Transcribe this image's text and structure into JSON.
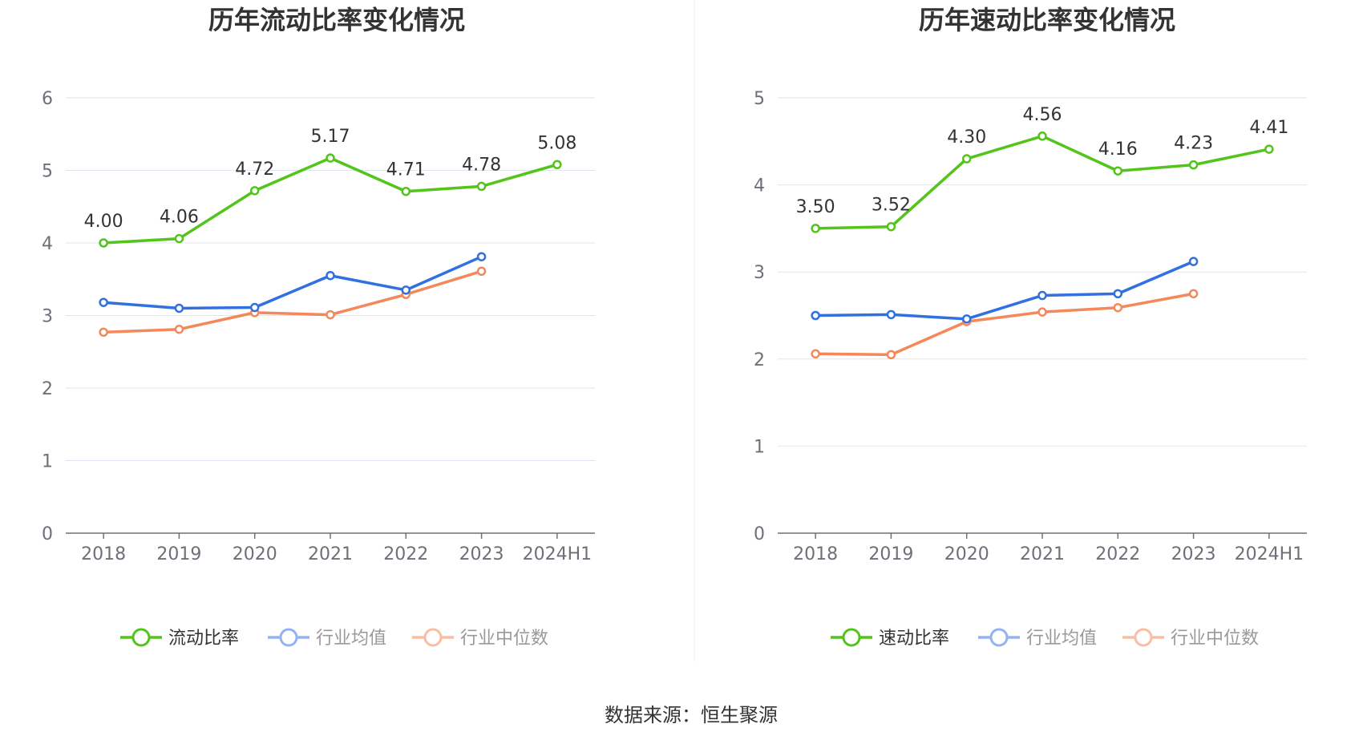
{
  "chart_data": [
    {
      "type": "line",
      "title": "历年流动比率变化情况",
      "categories": [
        "2018",
        "2019",
        "2020",
        "2021",
        "2022",
        "2023",
        "2024H1"
      ],
      "ylim": [
        0,
        6
      ],
      "yticks": [
        "0",
        "1",
        "2",
        "3",
        "4",
        "5",
        "6"
      ],
      "grid": true,
      "legend_position": "bottom-center",
      "series": [
        {
          "name": "流动比率",
          "color": "#52c41a",
          "values": [
            4.0,
            4.06,
            4.72,
            5.17,
            4.71,
            4.78,
            5.08
          ],
          "labels": [
            "4.00",
            "4.06",
            "4.72",
            "5.17",
            "4.71",
            "4.78",
            "5.08"
          ]
        },
        {
          "name": "行业均值",
          "color": "#3070e0",
          "values": [
            3.18,
            3.1,
            3.11,
            3.55,
            3.35,
            3.81,
            null
          ]
        },
        {
          "name": "行业中位数",
          "color": "#f4885a",
          "values": [
            2.77,
            2.81,
            3.04,
            3.01,
            3.29,
            3.61,
            null
          ]
        }
      ]
    },
    {
      "type": "line",
      "title": "历年速动比率变化情况",
      "categories": [
        "2018",
        "2019",
        "2020",
        "2021",
        "2022",
        "2023",
        "2024H1"
      ],
      "ylim": [
        0,
        5
      ],
      "yticks": [
        "0",
        "1",
        "2",
        "3",
        "4",
        "5"
      ],
      "grid": true,
      "legend_position": "bottom-center",
      "series": [
        {
          "name": "速动比率",
          "color": "#52c41a",
          "values": [
            3.5,
            3.52,
            4.3,
            4.56,
            4.16,
            4.23,
            4.41
          ],
          "labels": [
            "3.50",
            "3.52",
            "4.30",
            "4.56",
            "4.16",
            "4.23",
            "4.41"
          ]
        },
        {
          "name": "行业均值",
          "color": "#3070e0",
          "values": [
            2.5,
            2.51,
            2.46,
            2.73,
            2.75,
            3.12,
            null
          ]
        },
        {
          "name": "行业中位数",
          "color": "#f4885a",
          "values": [
            2.06,
            2.05,
            2.43,
            2.54,
            2.59,
            2.75,
            null
          ]
        }
      ]
    }
  ],
  "footer": {
    "source": "数据来源：恒生聚源"
  }
}
